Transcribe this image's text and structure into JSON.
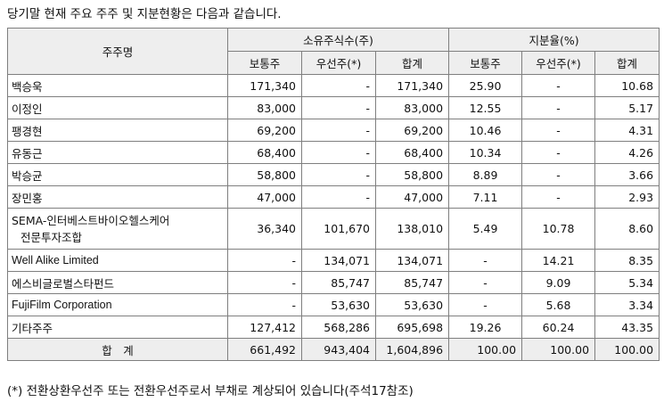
{
  "caption": "당기말 현재 주요 주주 및 지분현황은 다음과 같습니다.",
  "table": {
    "header": {
      "shareholder": "주주명",
      "shares_group": "소유주식수(주)",
      "ratio_group": "지분율(%)",
      "sub": [
        "보통주",
        "우선주(*)",
        "합계",
        "보통주",
        "우선주(*)",
        "합계"
      ]
    },
    "rows": [
      {
        "name": "백승욱",
        "c1": "171,340",
        "c2": "-",
        "c3": "171,340",
        "c4": "25.90",
        "c5": "-",
        "c6": "10.68"
      },
      {
        "name": "이정인",
        "c1": "83,000",
        "c2": "-",
        "c3": "83,000",
        "c4": "12.55",
        "c5": "-",
        "c6": "5.17"
      },
      {
        "name": "팽경현",
        "c1": "69,200",
        "c2": "-",
        "c3": "69,200",
        "c4": "10.46",
        "c5": "-",
        "c6": "4.31"
      },
      {
        "name": "유동근",
        "c1": "68,400",
        "c2": "-",
        "c3": "68,400",
        "c4": "10.34",
        "c5": "-",
        "c6": "4.26"
      },
      {
        "name": "박승균",
        "c1": "58,800",
        "c2": "-",
        "c3": "58,800",
        "c4": "8.89",
        "c5": "-",
        "c6": "3.66"
      },
      {
        "name": "장민홍",
        "c1": "47,000",
        "c2": "-",
        "c3": "47,000",
        "c4": "7.11",
        "c5": "-",
        "c6": "2.93"
      },
      {
        "name_line1": "SEMA-인터베스트바이오헬스케어",
        "name_line2": "전문투자조합",
        "c1": "36,340",
        "c2": "101,670",
        "c3": "138,010",
        "c4": "5.49",
        "c5": "10.78",
        "c6": "8.60"
      },
      {
        "name": "Well Alike Limited",
        "c1": "-",
        "c2": "134,071",
        "c3": "134,071",
        "c4": "-",
        "c5": "14.21",
        "c6": "8.35"
      },
      {
        "name": "에스비글로벌스타펀드",
        "c1": "-",
        "c2": "85,747",
        "c3": "85,747",
        "c4": "-",
        "c5": "9.09",
        "c6": "5.34"
      },
      {
        "name": "FujiFilm Corporation",
        "c1": "-",
        "c2": "53,630",
        "c3": "53,630",
        "c4": "-",
        "c5": "5.68",
        "c6": "3.34"
      },
      {
        "name": "기타주주",
        "c1": "127,412",
        "c2": "568,286",
        "c3": "695,698",
        "c4": "19.26",
        "c5": "60.24",
        "c6": "43.35"
      }
    ],
    "total": {
      "label": "합　계",
      "c1": "661,492",
      "c2": "943,404",
      "c3": "1,604,896",
      "c4": "100.00",
      "c5": "100.00",
      "c6": "100.00"
    }
  },
  "footnote": "(*) 전환상환우선주 또는 전환우선주로서 부채로 계상되어 있습니다(주석17참조)"
}
